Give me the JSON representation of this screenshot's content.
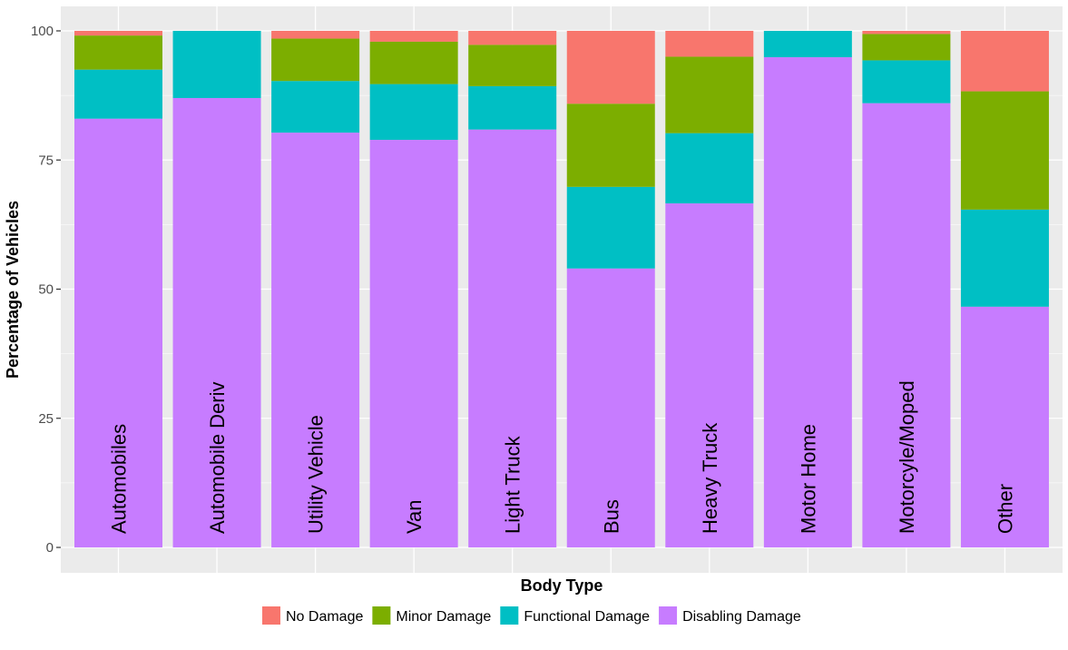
{
  "chart_data": {
    "type": "bar",
    "stacked": true,
    "orientation": "vertical",
    "title": "",
    "xlabel": "Body Type",
    "ylabel": "Percentage of Vehicles",
    "ylim": [
      0,
      100
    ],
    "yticks": [
      "0",
      "25",
      "50",
      "75",
      "100"
    ],
    "grid": true,
    "legend_position": "bottom",
    "categories": [
      "Automobiles",
      "Automobile Deriv",
      "Utility Vehicle",
      "Van",
      "Light Truck",
      "Bus",
      "Heavy Truck",
      "Motor Home",
      "Motorcyle/Moped",
      "Other"
    ],
    "series": [
      {
        "name": "Disabling Damage",
        "color": "#C77CFF",
        "values": [
          83,
          87,
          80.3,
          78.9,
          80.9,
          54,
          66.6,
          94.9,
          86,
          46.6
        ]
      },
      {
        "name": "Functional Damage",
        "color": "#00BFC4",
        "values": [
          9.5,
          13,
          10,
          10.8,
          8.4,
          15.8,
          13.6,
          5.1,
          8.3,
          18.8
        ]
      },
      {
        "name": "Minor Damage",
        "color": "#7CAE00",
        "values": [
          6.6,
          0,
          8.2,
          8.2,
          8,
          16.1,
          14.8,
          0,
          5.1,
          22.9
        ]
      },
      {
        "name": "No Damage",
        "color": "#F8766D",
        "values": [
          0.9,
          0,
          1.5,
          2.1,
          2.7,
          14.1,
          5,
          0,
          0.6,
          11.7
        ]
      }
    ],
    "legend_order": [
      "No Damage",
      "Minor Damage",
      "Functional Damage",
      "Disabling Damage"
    ]
  },
  "colors": {
    "panel_background": "#EBEBEB",
    "grid_line": "#FFFFFF",
    "tick_mark": "#333333"
  }
}
